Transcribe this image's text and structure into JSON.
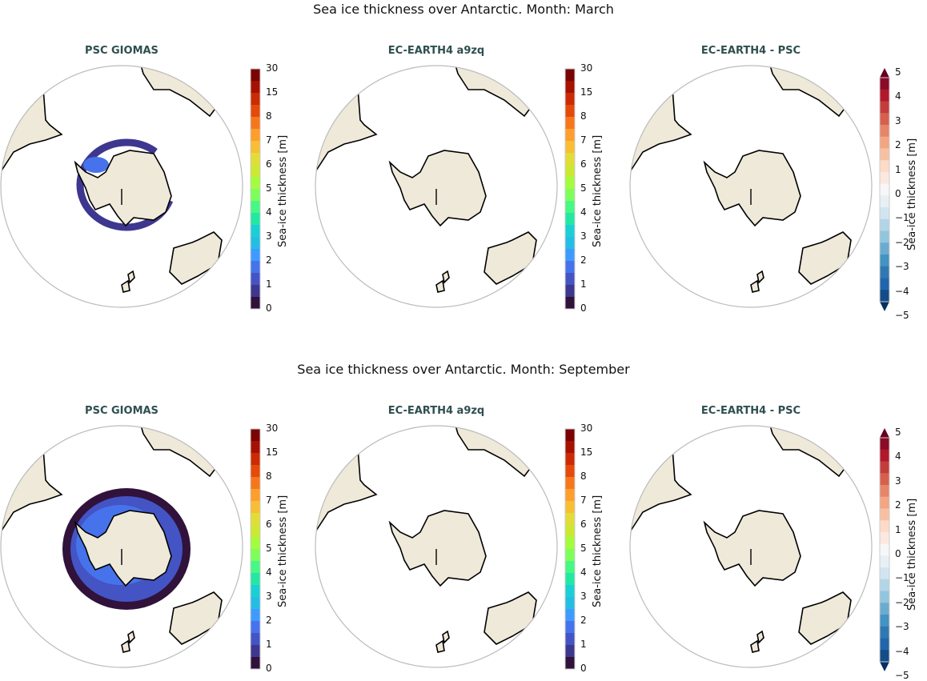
{
  "rows": [
    {
      "title": "Sea ice thickness over Antarctic. Month: March",
      "month": "March"
    },
    {
      "title": "Sea ice thickness over Antarctic. Month: September",
      "month": "September"
    }
  ],
  "panels": [
    "PSC GIOMAS",
    "EC-EARTH4 a9zq",
    "EC-EARTH4 -  PSC"
  ],
  "colorbar_abs": {
    "label": "Sea-ice thickness [m]",
    "ticks": [
      "0",
      "1",
      "2",
      "3",
      "4",
      "5",
      "6",
      "7",
      "8",
      "15",
      "30"
    ],
    "colors": [
      "#30123b",
      "#3e378f",
      "#4454c4",
      "#4673eb",
      "#3e9bfe",
      "#24bee5",
      "#1bd0d5",
      "#23e8a4",
      "#46f884",
      "#7efe5b",
      "#a4fc3c",
      "#cce832",
      "#e2dc38",
      "#f8be34",
      "#fe9e2c",
      "#f6771b",
      "#e44a0a",
      "#cb2a04",
      "#a61101",
      "#7a0403"
    ]
  },
  "colorbar_diff": {
    "label": "Sea-ice thickness [m]",
    "ticks": [
      "5",
      "4",
      "3",
      "2",
      "1",
      "0",
      "−1",
      "−2",
      "−3",
      "−4",
      "−5"
    ],
    "colors": [
      "#67001f",
      "#8b0a26",
      "#b2182b",
      "#c43c3c",
      "#d6604d",
      "#e7856a",
      "#f4a582",
      "#f8c0a2",
      "#fddbc7",
      "#fbe9df",
      "#f7f7f7",
      "#e8f0f5",
      "#d1e5f0",
      "#b2d5e8",
      "#92c5de",
      "#6aacd0",
      "#4393c3",
      "#3178b3",
      "#2166ac",
      "#134c87",
      "#053061"
    ]
  },
  "land_color": "#efe9d9",
  "ice": {
    "march": {
      "extent": "thin partial ring",
      "color": "#3e378f"
    },
    "september": {
      "extent": "wide full ring",
      "colors": [
        "#30123b",
        "#4454c4",
        "#4673eb"
      ]
    }
  }
}
